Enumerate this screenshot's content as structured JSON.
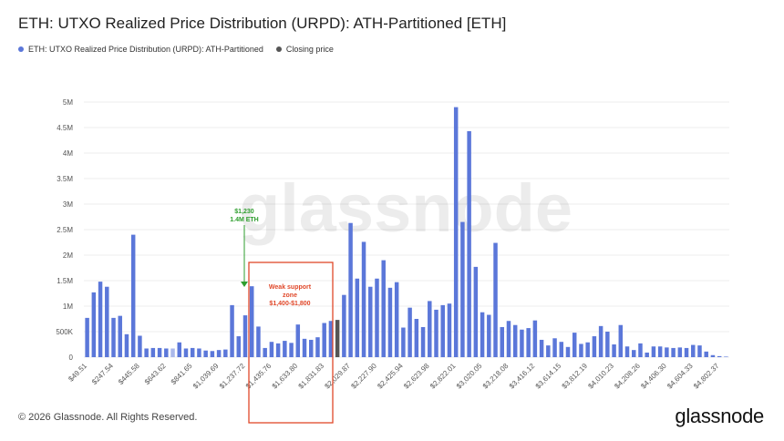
{
  "title": "ETH: UTXO Realized Price Distribution (URPD): ATH-Partitioned [ETH]",
  "legend": [
    {
      "label": "ETH: UTXO Realized Price Distribution (URPD): ATH-Partitioned",
      "color": "#5b77d9"
    },
    {
      "label": "Closing price",
      "color": "#555555"
    }
  ],
  "watermark": "glassnode",
  "footer": {
    "copyright": "© 2026 Glassnode. All Rights Reserved.",
    "brand": "glassnode"
  },
  "annotations": {
    "eth_1230": {
      "line1": "$1,230",
      "line2": "1.4M ETH",
      "color": "#2e9e2e"
    },
    "weak_support": {
      "line1": "Weak support",
      "line2": "zone",
      "line3": "$1,400-$1,800",
      "color": "#e0482a"
    }
  },
  "chart_data": {
    "type": "bar",
    "ylim": [
      0,
      5000000
    ],
    "y_ticks": [
      {
        "value": 0,
        "label": "0"
      },
      {
        "value": 500000,
        "label": "500K"
      },
      {
        "value": 1000000,
        "label": "1M"
      },
      {
        "value": 1500000,
        "label": "1.5M"
      },
      {
        "value": 2000000,
        "label": "2M"
      },
      {
        "value": 2500000,
        "label": "2.5M"
      },
      {
        "value": 3000000,
        "label": "3M"
      },
      {
        "value": 3500000,
        "label": "3.5M"
      },
      {
        "value": 4000000,
        "label": "4M"
      },
      {
        "value": 4500000,
        "label": "4.5M"
      },
      {
        "value": 5000000,
        "label": "5M"
      }
    ],
    "x_tick_labels": [
      {
        "index": 0,
        "label": "$49.51"
      },
      {
        "index": 4,
        "label": "$247.54"
      },
      {
        "index": 8,
        "label": "$445.58"
      },
      {
        "index": 12,
        "label": "$643.62"
      },
      {
        "index": 16,
        "label": "$841.65"
      },
      {
        "index": 20,
        "label": "$1,039.69"
      },
      {
        "index": 24,
        "label": "$1,237.72"
      },
      {
        "index": 28,
        "label": "$1,435.76"
      },
      {
        "index": 32,
        "label": "$1,633.80"
      },
      {
        "index": 36,
        "label": "$1,831.83"
      },
      {
        "index": 40,
        "label": "$2,029.87"
      },
      {
        "index": 44,
        "label": "$2,227.90"
      },
      {
        "index": 48,
        "label": "$2,425.94"
      },
      {
        "index": 52,
        "label": "$2,623.98"
      },
      {
        "index": 56,
        "label": "$2,822.01"
      },
      {
        "index": 60,
        "label": "$3,020.05"
      },
      {
        "index": 64,
        "label": "$3,218.08"
      },
      {
        "index": 68,
        "label": "$3,416.12"
      },
      {
        "index": 72,
        "label": "$3,614.15"
      },
      {
        "index": 76,
        "label": "$3,812.19"
      },
      {
        "index": 80,
        "label": "$4,010.23"
      },
      {
        "index": 84,
        "label": "$4,208.26"
      },
      {
        "index": 88,
        "label": "$4,406.30"
      },
      {
        "index": 92,
        "label": "$4,604.33"
      },
      {
        "index": 96,
        "label": "$4,802.37"
      }
    ],
    "closing_price_index": 38,
    "highlight_indices": [
      13
    ],
    "values": [
      770000,
      1270000,
      1480000,
      1380000,
      770000,
      810000,
      450000,
      2400000,
      420000,
      170000,
      180000,
      180000,
      170000,
      170000,
      290000,
      170000,
      180000,
      170000,
      130000,
      120000,
      140000,
      150000,
      1020000,
      410000,
      820000,
      1390000,
      600000,
      180000,
      300000,
      270000,
      320000,
      280000,
      640000,
      360000,
      340000,
      390000,
      670000,
      710000,
      730000,
      1220000,
      2630000,
      1540000,
      2260000,
      1380000,
      1540000,
      1900000,
      1360000,
      1470000,
      580000,
      970000,
      750000,
      590000,
      1100000,
      930000,
      1020000,
      1050000,
      4900000,
      2650000,
      4430000,
      1770000,
      880000,
      830000,
      2240000,
      590000,
      710000,
      630000,
      540000,
      570000,
      720000,
      340000,
      230000,
      370000,
      300000,
      200000,
      480000,
      260000,
      290000,
      410000,
      610000,
      500000,
      250000,
      630000,
      210000,
      140000,
      270000,
      90000,
      210000,
      210000,
      190000,
      180000,
      190000,
      180000,
      240000,
      230000,
      110000,
      40000,
      20000,
      10000
    ]
  }
}
